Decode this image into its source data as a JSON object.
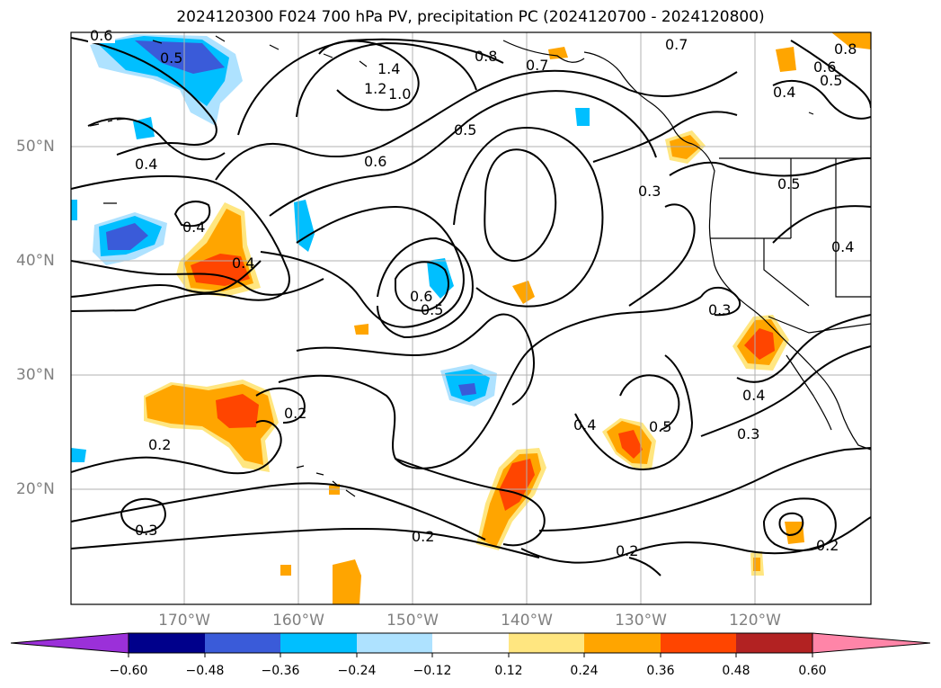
{
  "title": "2024120300 F024 700 hPa PV, precipitation PC (2024120700 - 2024120800)",
  "lon_labels": [
    "170°W",
    "160°W",
    "150°W",
    "140°W",
    "130°W",
    "120°W"
  ],
  "lat_labels": [
    "50°N",
    "40°N",
    "30°N",
    "20°N"
  ],
  "colorbar": {
    "tick_labels": [
      "−0.60",
      "−0.48",
      "−0.36",
      "−0.24",
      "−0.12",
      "0.12",
      "0.24",
      "0.36",
      "0.48",
      "0.60"
    ],
    "colors": [
      "#9b30d9",
      "#00008b",
      "#3a5bd9",
      "#00bfff",
      "#aee2ff",
      "#ffffff",
      "#ffe680",
      "#ffa500",
      "#ff4500",
      "#b22222",
      "#ff85a8"
    ]
  },
  "contour_labels": [
    "0.6",
    "0.5",
    "1.4",
    "1.2",
    "1.0",
    "0.8",
    "0.7",
    "0.7",
    "0.8",
    "0.6",
    "0.5",
    "0.4",
    "0.4",
    "0.6",
    "0.5",
    "0.3",
    "0.5",
    "0.4",
    "0.4",
    "0.6",
    "0.5",
    "0.3",
    "0.4",
    "0.2",
    "0.2",
    "0.4",
    "0.5",
    "0.3",
    "0.3",
    "0.2",
    "0.2",
    "0.2",
    "0.4"
  ],
  "colors": {
    "contour": "#000000",
    "grid": "#b0b0b0",
    "coast": "#000000",
    "axis_labels": "#808080"
  }
}
